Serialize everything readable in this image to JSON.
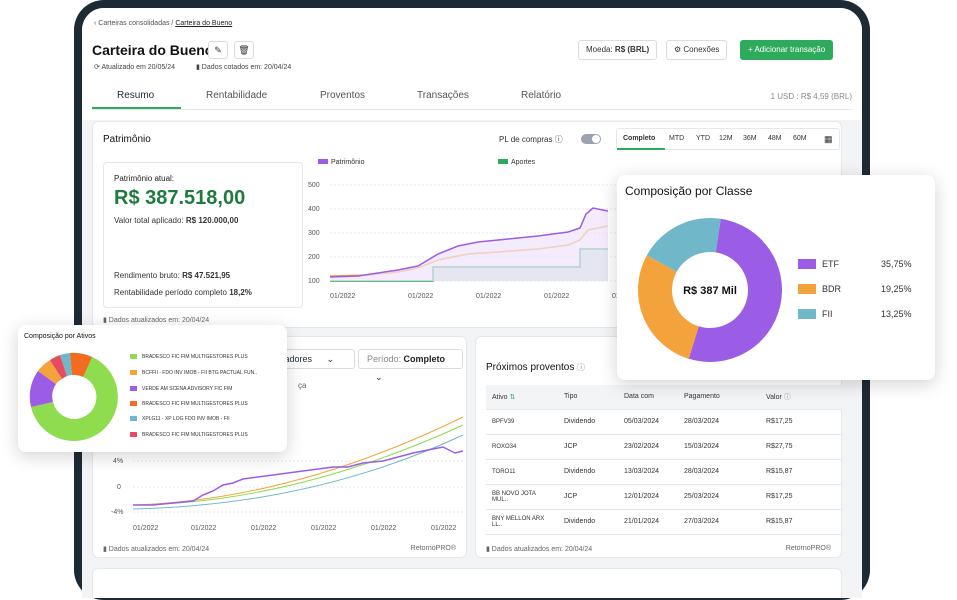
{
  "breadcrumb": {
    "root": "Carteiras consolidadas /",
    "current": "Carteira do Bueno"
  },
  "title": "Carteira do Bueno",
  "updated": "Atualizado em 20/05/24",
  "quoted": "Dados cotados em: 20/04/24",
  "currency": {
    "label": "Moeda:",
    "value": "R$ (BRL)"
  },
  "connections": "Conexões",
  "add_transaction": "+ Adicionar transação",
  "tabs": [
    "Resumo",
    "Rentabilidade",
    "Proventos",
    "Transações",
    "Relatório"
  ],
  "usd_rate": {
    "label": "1 USD :",
    "value": "R$ 4,59 (BRL)"
  },
  "patrimonio": {
    "title": "Patrimônio",
    "pl_toggle": "PL de compras",
    "periods": [
      "Completo",
      "MTD",
      "YTD",
      "12M",
      "36M",
      "48M",
      "60M"
    ],
    "current_label": "Patrimônio atual:",
    "current_value": "R$ 387.518,00",
    "applied_label": "Valor total aplicado:",
    "applied_value": "R$ 120.000,00",
    "gross_label": "Rendimento bruto:",
    "gross_value": "R$ 47.521,95",
    "return_label": "Rentabilidade período completo",
    "return_value": "18,2%",
    "footer": "Dados atualizados em: 20/04/24"
  },
  "chart_data": [
    {
      "type": "area",
      "series": [
        {
          "name": "Patrimônio",
          "color": "#9b5de5"
        },
        {
          "name": "Aportes",
          "color": "#2eaa5c"
        },
        {
          "name": "PL de compras",
          "color": "#f4a23c"
        }
      ],
      "y_ticks": [
        "500",
        "400",
        "300",
        "200",
        "100"
      ],
      "x_ticks": [
        "01/2022",
        "01/2022",
        "01/2022",
        "01/2022",
        "01/2022"
      ]
    },
    {
      "type": "line",
      "y_ticks": [
        "4%",
        "0",
        "-4%"
      ],
      "x_ticks": [
        "01/2022",
        "01/2022",
        "01/2022",
        "01/2022",
        "01/2022",
        "01/2022"
      ]
    },
    {
      "type": "pie",
      "title": "Composição por Classe",
      "center": "R$ 387 Mil",
      "legend": [
        {
          "name": "ETF",
          "value": 35.75,
          "label": "35,75%",
          "color": "#9b5de5"
        },
        {
          "name": "BDR",
          "value": 19.25,
          "label": "19,25%",
          "color": "#f4a23c"
        },
        {
          "name": "FII",
          "value": 13.25,
          "label": "13,25%",
          "color": "#6fb7c9"
        }
      ]
    },
    {
      "type": "pie",
      "title": "Composição por Ativos",
      "legend": [
        {
          "name": "BRADESCO FIC FIM MULTIGESTORES PLUS",
          "color": "#8fdc4e"
        },
        {
          "name": "BCFFII - FDO INV IMOB - FII BTG PACTUAL FUN..",
          "color": "#f4a23c"
        },
        {
          "name": "VERDE AM SCENA ADVISORY FIC FIM",
          "color": "#9b5de5"
        },
        {
          "name": "BRADESCO FIC FIM MULTIGESTORES PLUS",
          "color": "#f26b21"
        },
        {
          "name": "XPLG11 - XP LOG FDO INV IMOB - FII",
          "color": "#6fb7c9"
        },
        {
          "name": "BRADESCO FIC FIM MULTIGESTORES PLUS",
          "color": "#e84a5f"
        }
      ]
    }
  ],
  "rent": {
    "indicators": "cadores",
    "period_label": "Período:",
    "period_value": "Completo",
    "frag": "ça",
    "footer": "Dados atualizados em: 20/04/24",
    "brand": "RetornoPRO®"
  },
  "proventos": {
    "title": "Próximos proventos",
    "headers": [
      "Ativo",
      "Tipo",
      "Data com",
      "Pagamento",
      "Valor"
    ],
    "rows": [
      [
        "BPFV39",
        "Dividendo",
        "05/03/2024",
        "28/03/2024",
        "R$17,25"
      ],
      [
        "ROXO34",
        "JCP",
        "23/02/2024",
        "15/03/2024",
        "R$27,75"
      ],
      [
        "TORO11",
        "Dividendo",
        "13/03/2024",
        "28/03/2024",
        "R$15,87"
      ],
      [
        "BB NOVO JOTA MUL..",
        "JCP",
        "12/01/2024",
        "25/03/2024",
        "R$17,25"
      ],
      [
        "BNY MELLON ARX LL..",
        "Dividendo",
        "21/01/2024",
        "27/03/2024",
        "R$15,87"
      ]
    ],
    "footer": "Dados atualizados em: 20/04/24",
    "brand": "RetornoPRO®"
  }
}
